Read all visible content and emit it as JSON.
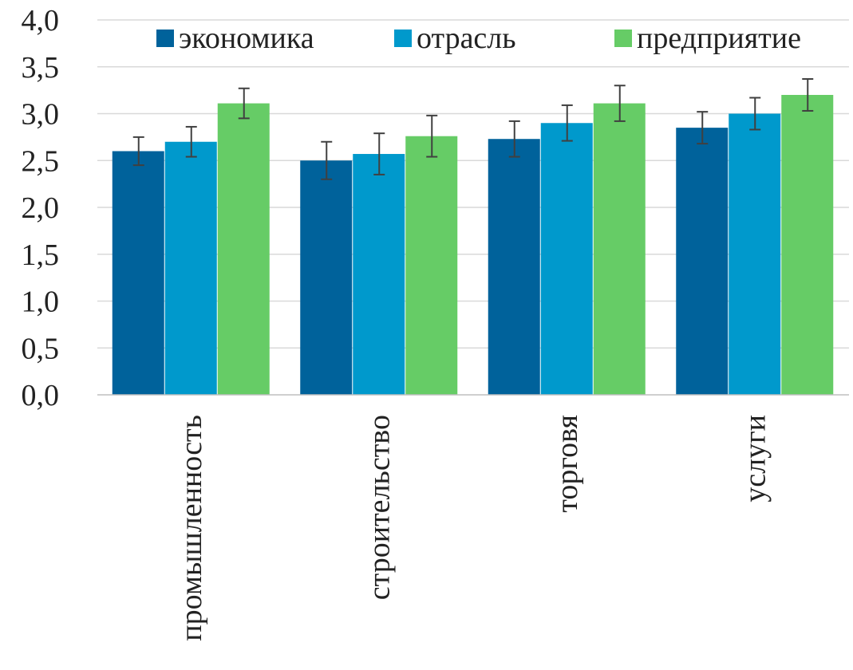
{
  "chart_data": {
    "type": "bar",
    "categories": [
      "промышленность",
      "строительство",
      "торговя",
      "услуги"
    ],
    "series": [
      {
        "name": "экономика",
        "color": "#00629b",
        "values": [
          2.6,
          2.5,
          2.73,
          2.85
        ],
        "errors": [
          0.15,
          0.2,
          0.19,
          0.17
        ]
      },
      {
        "name": "отрасль",
        "color": "#0099cc",
        "values": [
          2.7,
          2.57,
          2.9,
          3.0
        ],
        "errors": [
          0.16,
          0.22,
          0.19,
          0.17
        ]
      },
      {
        "name": "предприятие",
        "color": "#66cc66",
        "values": [
          3.11,
          2.76,
          3.11,
          3.2
        ],
        "errors": [
          0.16,
          0.22,
          0.19,
          0.17
        ]
      }
    ],
    "ylim": [
      0,
      4
    ],
    "yticks": [
      "0,0",
      "0,5",
      "1,0",
      "1,5",
      "2,0",
      "2,5",
      "3,0",
      "3,5",
      "4,0"
    ],
    "ytick_values": [
      0,
      0.5,
      1.0,
      1.5,
      2.0,
      2.5,
      3.0,
      3.5,
      4.0
    ],
    "grid": true,
    "legend_position": "top",
    "title": "",
    "xlabel": "",
    "ylabel": ""
  }
}
